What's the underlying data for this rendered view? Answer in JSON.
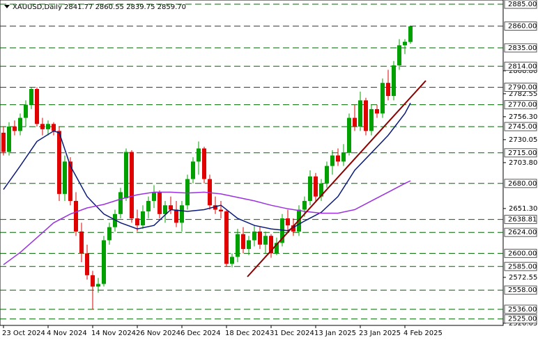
{
  "chart_data": {
    "type": "candlestick",
    "title": "XAUUSD,Daily  2841.77 2860.55 2839.75 2859.70",
    "categories": [
      "23 Oct 2024",
      null,
      null,
      null,
      null,
      null,
      null,
      null,
      "4 Nov 2024",
      null,
      null,
      null,
      null,
      null,
      null,
      null,
      "14 Nov 2024",
      null,
      null,
      null,
      null,
      null,
      null,
      null,
      "26 Nov 2024",
      null,
      null,
      null,
      null,
      null,
      null,
      null,
      "6 Dec 2024",
      null,
      null,
      null,
      null,
      null,
      null,
      null,
      "18 Dec 2024",
      null,
      null,
      null,
      null,
      null,
      null,
      null,
      "31 Dec 2024",
      null,
      null,
      null,
      null,
      null,
      null,
      null,
      "13 Jan 2025",
      null,
      null,
      null,
      null,
      null,
      null,
      null,
      "23 Jan 2025",
      null,
      null,
      null,
      null,
      null,
      null,
      null,
      "4 Feb 2025",
      null
    ],
    "open": [
      2738,
      2716,
      2745,
      2740,
      2755,
      2770,
      2788,
      2748,
      2742,
      2748,
      2740,
      2668,
      2705,
      2660,
      2625,
      2600,
      2575,
      2562,
      2565,
      2615,
      2630,
      2645,
      2663,
      2716,
      2640,
      2632,
      2648,
      2660,
      2670,
      2645,
      2655,
      2650,
      2635,
      2655,
      2685,
      2705,
      2720,
      2685,
      2655,
      2650,
      2648,
      2588,
      2596,
      2622,
      2605,
      2615,
      2625,
      2610,
      2620,
      2600,
      2612,
      2640,
      2632,
      2625,
      2650,
      2660,
      2688,
      2665,
      2680,
      2700,
      2712,
      2705,
      2715,
      2755,
      2745,
      2775,
      2740,
      2765,
      2760,
      2795,
      2780,
      2815,
      2838,
      2841.77
    ],
    "high": [
      2745,
      2750,
      2752,
      2760,
      2775,
      2790,
      2790,
      2755,
      2752,
      2750,
      2745,
      2712,
      2710,
      2670,
      2635,
      2610,
      2580,
      2572,
      2620,
      2635,
      2650,
      2675,
      2720,
      2718,
      2650,
      2655,
      2665,
      2678,
      2672,
      2660,
      2665,
      2660,
      2660,
      2690,
      2710,
      2728,
      2722,
      2690,
      2665,
      2660,
      2650,
      2600,
      2628,
      2630,
      2620,
      2632,
      2630,
      2625,
      2622,
      2618,
      2645,
      2650,
      2640,
      2655,
      2665,
      2695,
      2692,
      2685,
      2705,
      2718,
      2720,
      2725,
      2760,
      2770,
      2785,
      2778,
      2770,
      2770,
      2800,
      2810,
      2820,
      2845,
      2845,
      2860.55
    ],
    "low": [
      2712,
      2712,
      2735,
      2735,
      2745,
      2765,
      2745,
      2735,
      2735,
      2735,
      2660,
      2660,
      2655,
      2620,
      2590,
      2570,
      2536,
      2555,
      2562,
      2610,
      2625,
      2640,
      2660,
      2635,
      2625,
      2628,
      2640,
      2652,
      2640,
      2635,
      2645,
      2630,
      2625,
      2650,
      2680,
      2690,
      2680,
      2650,
      2645,
      2640,
      2585,
      2584,
      2590,
      2600,
      2598,
      2608,
      2605,
      2600,
      2595,
      2598,
      2608,
      2625,
      2620,
      2620,
      2642,
      2655,
      2660,
      2660,
      2675,
      2690,
      2700,
      2700,
      2712,
      2740,
      2740,
      2735,
      2735,
      2755,
      2755,
      2775,
      2775,
      2810,
      2828,
      2839.75
    ],
    "close": [
      2716,
      2745,
      2740,
      2755,
      2770,
      2788,
      2748,
      2742,
      2748,
      2740,
      2668,
      2705,
      2660,
      2625,
      2600,
      2575,
      2562,
      2565,
      2615,
      2630,
      2645,
      2670,
      2716,
      2640,
      2632,
      2648,
      2660,
      2670,
      2645,
      2655,
      2650,
      2635,
      2655,
      2685,
      2705,
      2720,
      2685,
      2655,
      2650,
      2648,
      2588,
      2596,
      2622,
      2605,
      2615,
      2625,
      2610,
      2620,
      2600,
      2612,
      2640,
      2632,
      2625,
      2650,
      2660,
      2688,
      2665,
      2680,
      2700,
      2712,
      2705,
      2715,
      2755,
      2745,
      2775,
      2740,
      2765,
      2760,
      2795,
      2780,
      2815,
      2838,
      2842,
      2859.7
    ],
    "up_color": "#00a000",
    "down_color": "#e00000",
    "lines": [
      {
        "color": "#0a1a7a",
        "x": [
          0,
          3,
          6,
          9,
          10,
          12,
          15,
          18,
          21,
          24,
          27,
          30,
          33,
          36,
          39,
          42,
          45,
          48,
          51,
          54,
          57,
          60,
          63,
          66,
          69,
          72,
          73
        ],
        "values": [
          2673,
          2700,
          2728,
          2740,
          2738,
          2700,
          2665,
          2645,
          2635,
          2628,
          2632,
          2650,
          2648,
          2650,
          2655,
          2640,
          2632,
          2628,
          2626,
          2637,
          2647,
          2665,
          2695,
          2715,
          2735,
          2760,
          2772
        ]
      },
      {
        "color": "#9b30e0",
        "x": [
          0,
          3,
          6,
          9,
          12,
          15,
          18,
          21,
          24,
          27,
          30,
          33,
          36,
          39,
          42,
          45,
          48,
          51,
          54,
          57,
          60,
          63,
          66,
          69,
          72,
          73
        ],
        "values": [
          2587,
          2601,
          2618,
          2635,
          2645,
          2652,
          2656,
          2662,
          2667,
          2670,
          2670,
          2669,
          2670,
          2668,
          2664,
          2660,
          2655,
          2651,
          2648,
          2646,
          2646,
          2650,
          2660,
          2670,
          2680,
          2683
        ]
      },
      {
        "color": "#8b0000",
        "x": [
          43.75,
          75.75
        ],
        "values": [
          2573.3,
          2797.5
        ]
      }
    ],
    "levels": [
      {
        "value": 2885,
        "label": "2885.00"
      },
      {
        "value": 2860,
        "label": "2860.00"
      },
      {
        "value": 2835,
        "label": "2835.00"
      },
      {
        "value": 2814,
        "label": "2814.00"
      },
      {
        "value": 2790,
        "label": "2790.00"
      },
      {
        "value": 2770,
        "label": "2770.00"
      },
      {
        "value": 2745,
        "label": "2745.00"
      },
      {
        "value": 2715,
        "label": "2715.00"
      },
      {
        "value": 2680,
        "label": "2680.00"
      },
      {
        "value": 2638.81,
        "label": "2638.81"
      },
      {
        "value": 2624,
        "label": "2624.00"
      },
      {
        "value": 2600,
        "label": "2600.00"
      },
      {
        "value": 2585,
        "label": "2585.00"
      },
      {
        "value": 2558,
        "label": "2558.00"
      },
      {
        "value": 2536,
        "label": "2536.00"
      },
      {
        "value": 2525,
        "label": "2525.00"
      }
    ],
    "level_color": "#006400",
    "yticks": [
      {
        "value": 2808.8,
        "label": "2808.80"
      },
      {
        "value": 2782.55,
        "label": "2782.55"
      },
      {
        "value": 2756.3,
        "label": "2756.30"
      },
      {
        "value": 2730.05,
        "label": "2730.05"
      },
      {
        "value": 2703.8,
        "label": "2703.80"
      },
      {
        "value": 2651.3,
        "label": "2651.30"
      },
      {
        "value": 2572.55,
        "label": "2572.55"
      },
      {
        "value": 2520.05,
        "label": "2520.05"
      }
    ],
    "ylim": [
      2517.6,
      2889.8
    ],
    "xlim": [
      -0.625,
      89.625
    ]
  }
}
